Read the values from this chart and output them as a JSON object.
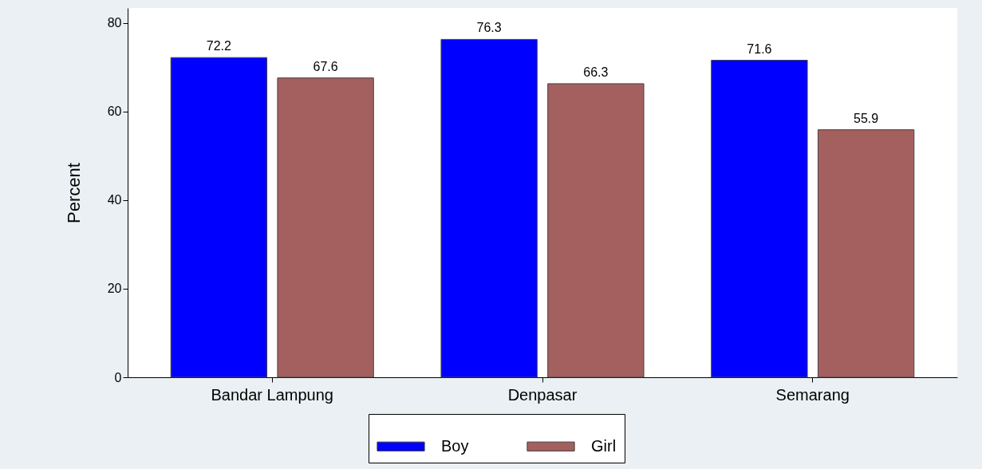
{
  "chart_data": {
    "type": "bar",
    "ylabel": "Percent",
    "categories": [
      "Bandar Lampung",
      "Denpasar",
      "Semarang"
    ],
    "series": [
      {
        "name": "Boy",
        "color": "#0000ff",
        "values": [
          72.2,
          76.3,
          71.6
        ]
      },
      {
        "name": "Girl",
        "color": "#a45f5f",
        "values": [
          67.6,
          66.3,
          55.9
        ]
      }
    ],
    "ylim": [
      0,
      83.4
    ],
    "yticks": [
      0,
      20,
      40,
      60,
      80
    ],
    "grid": false,
    "legend": "bottom",
    "data_labels": true
  }
}
